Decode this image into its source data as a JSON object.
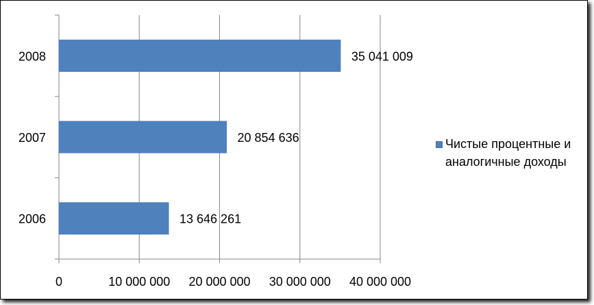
{
  "chart_data": {
    "type": "bar",
    "orientation": "horizontal",
    "categories": [
      "2006",
      "2007",
      "2008"
    ],
    "series": [
      {
        "name": "Чистые процентные и аналогичные доходы",
        "values": [
          13646261,
          20854636,
          35041009
        ],
        "color": "#4F81BD"
      }
    ],
    "data_labels": [
      "13 646 261",
      "20 854 636",
      "35 041 009"
    ],
    "xlim": [
      0,
      40000000
    ],
    "x_ticks": [
      0,
      10000000,
      20000000,
      30000000,
      40000000
    ],
    "x_tick_labels": [
      "0",
      "10 000 000",
      "20 000 000",
      "30 000 000",
      "40 000 000"
    ],
    "grid": "vertical",
    "legend": "right"
  },
  "colors": {
    "bar_border": "#4A7EBB",
    "grid": "#868686",
    "axis": "#868686"
  }
}
